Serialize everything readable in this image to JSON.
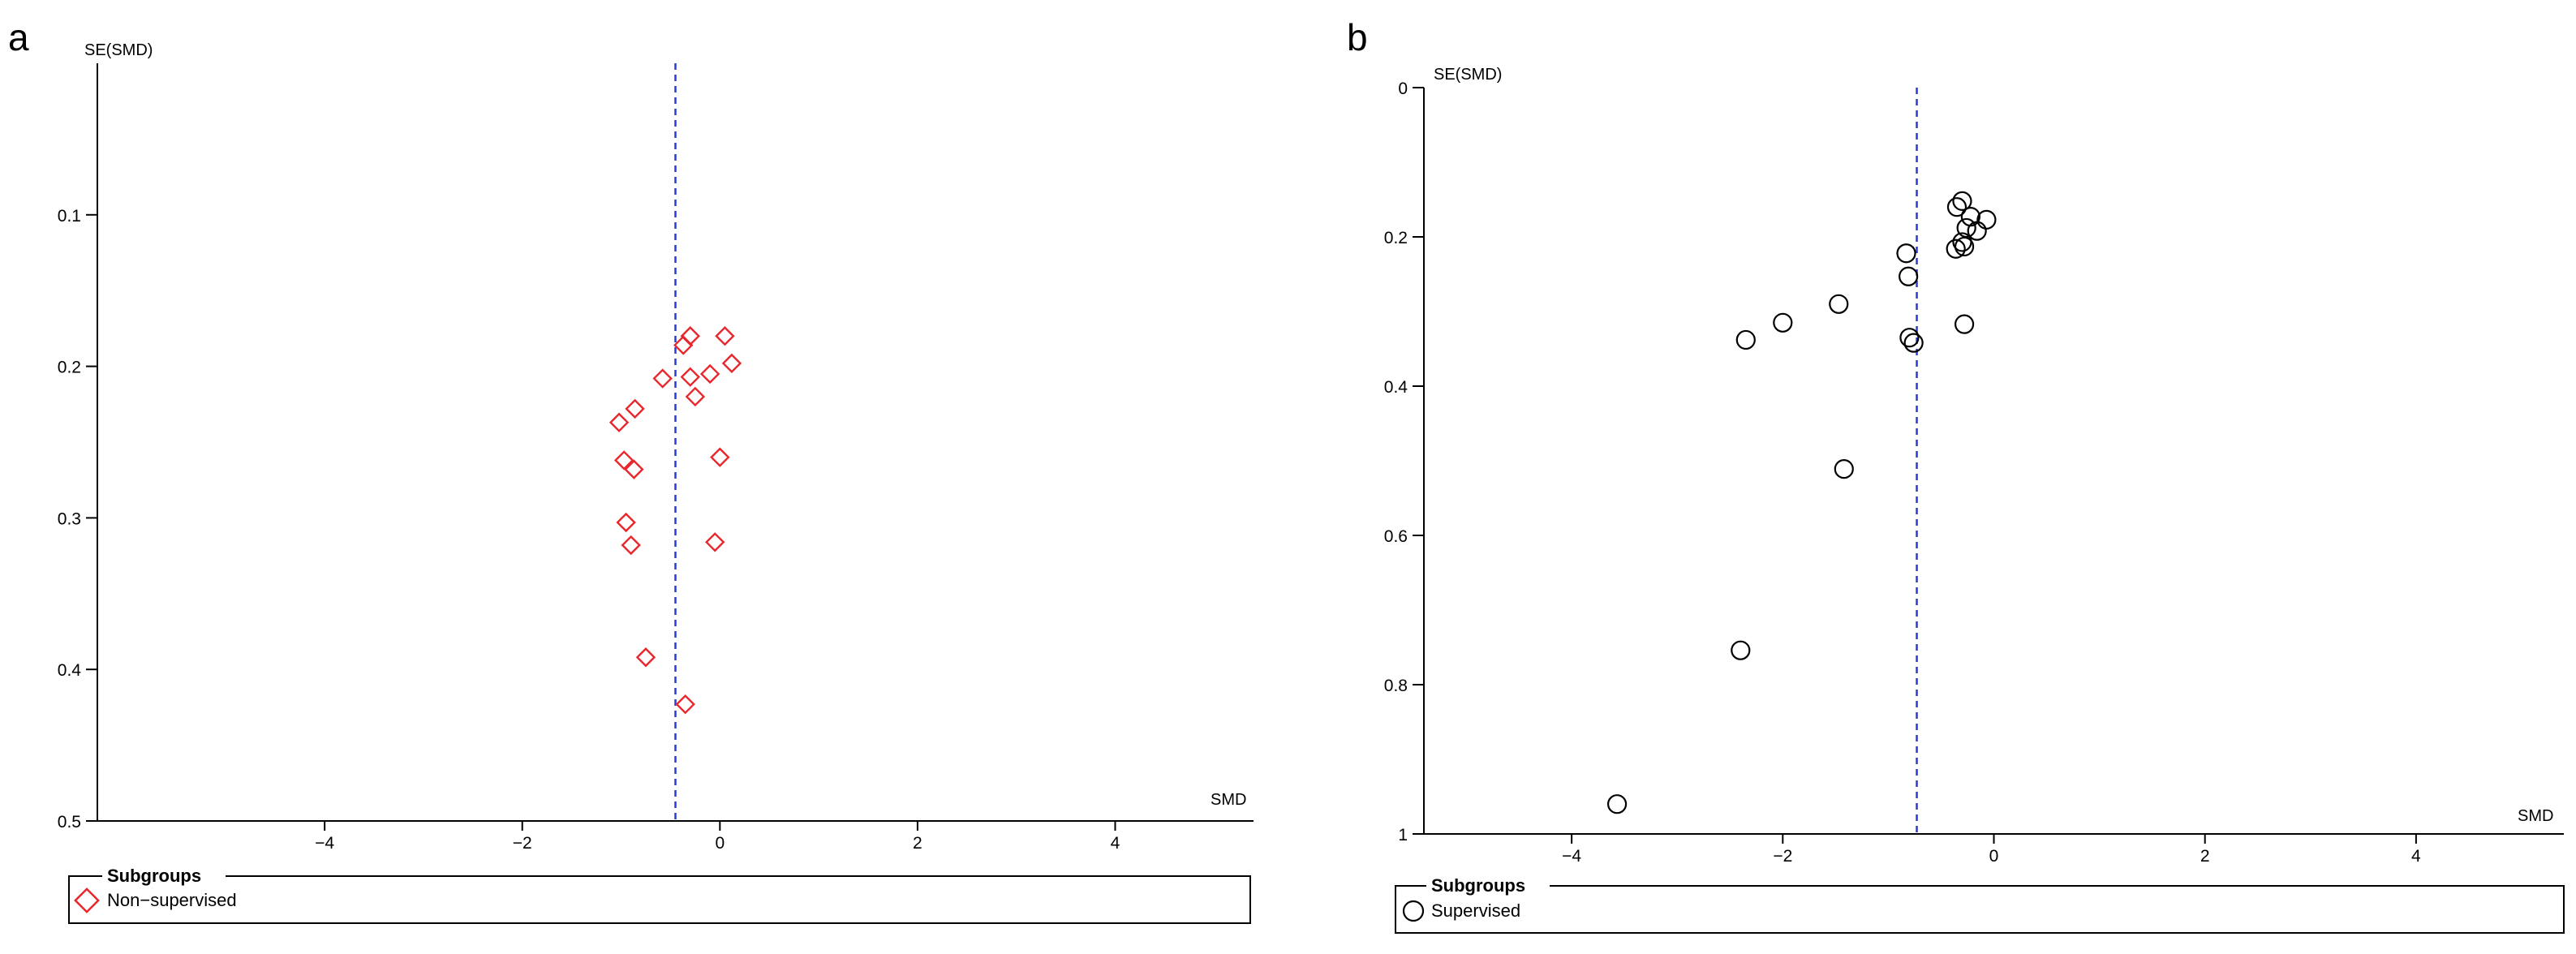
{
  "chart_data": [
    {
      "panel": "a",
      "type": "scatter",
      "xlabel": "SMD",
      "ylabel": "SE(SMD)",
      "xlim": [
        -6.3,
        5.4
      ],
      "ylim": [
        0,
        0.5
      ],
      "y_inverted": true,
      "xticks": [
        -4,
        -2,
        0,
        2,
        4
      ],
      "xtick_labels": [
        "−4",
        "−2",
        "0",
        "2",
        "4"
      ],
      "yticks": [
        0.1,
        0.2,
        0.3,
        0.4,
        0.5
      ],
      "ytick_labels": [
        "0.1",
        "0.2",
        "0.3",
        "0.4",
        "0.5"
      ],
      "reference_line_x": -0.45,
      "marker": "diamond",
      "marker_color": "#e8262b",
      "legend_title": "Subgroups",
      "series": [
        {
          "name": "Non−supervised",
          "points": [
            {
              "x": 0.05,
              "y": 0.18
            },
            {
              "x": -0.3,
              "y": 0.18
            },
            {
              "x": -0.37,
              "y": 0.186
            },
            {
              "x": 0.12,
              "y": 0.198
            },
            {
              "x": -0.58,
              "y": 0.208
            },
            {
              "x": -0.3,
              "y": 0.207
            },
            {
              "x": -0.1,
              "y": 0.205
            },
            {
              "x": -0.25,
              "y": 0.22
            },
            {
              "x": -0.86,
              "y": 0.228
            },
            {
              "x": -1.02,
              "y": 0.237
            },
            {
              "x": -0.97,
              "y": 0.262
            },
            {
              "x": -0.87,
              "y": 0.268
            },
            {
              "x": 0.0,
              "y": 0.26
            },
            {
              "x": -0.95,
              "y": 0.303
            },
            {
              "x": -0.9,
              "y": 0.318
            },
            {
              "x": -0.05,
              "y": 0.316
            },
            {
              "x": -0.75,
              "y": 0.392
            },
            {
              "x": -0.35,
              "y": 0.423
            }
          ]
        }
      ]
    },
    {
      "panel": "b",
      "type": "scatter",
      "xlabel": "SMD",
      "ylabel": "SE(SMD)",
      "xlim": [
        -5.4,
        5.4
      ],
      "ylim": [
        0,
        1
      ],
      "y_inverted": true,
      "xticks": [
        -4,
        -2,
        0,
        2,
        4
      ],
      "xtick_labels": [
        "−4",
        "−2",
        "0",
        "2",
        "4"
      ],
      "yticks": [
        0,
        0.2,
        0.4,
        0.6,
        0.8,
        1
      ],
      "ytick_labels": [
        "0",
        "0.2",
        "0.4",
        "0.6",
        "0.8",
        "1"
      ],
      "reference_line_x": -0.73,
      "marker": "circle",
      "marker_color": "#000000",
      "legend_title": "Subgroups",
      "series": [
        {
          "name": "Supervised",
          "points": [
            {
              "x": -0.3,
              "y": 0.152
            },
            {
              "x": -0.35,
              "y": 0.16
            },
            {
              "x": -0.22,
              "y": 0.173
            },
            {
              "x": -0.07,
              "y": 0.177
            },
            {
              "x": -0.26,
              "y": 0.188
            },
            {
              "x": -0.16,
              "y": 0.192
            },
            {
              "x": -0.3,
              "y": 0.207
            },
            {
              "x": -0.28,
              "y": 0.213
            },
            {
              "x": -0.36,
              "y": 0.216
            },
            {
              "x": -0.83,
              "y": 0.222
            },
            {
              "x": -0.81,
              "y": 0.253
            },
            {
              "x": -1.47,
              "y": 0.29
            },
            {
              "x": -2.0,
              "y": 0.315
            },
            {
              "x": -0.28,
              "y": 0.317
            },
            {
              "x": -2.35,
              "y": 0.338
            },
            {
              "x": -0.8,
              "y": 0.335
            },
            {
              "x": -0.76,
              "y": 0.342
            },
            {
              "x": -1.42,
              "y": 0.511
            },
            {
              "x": -2.4,
              "y": 0.754
            },
            {
              "x": -3.57,
              "y": 0.96
            }
          ]
        }
      ]
    }
  ]
}
